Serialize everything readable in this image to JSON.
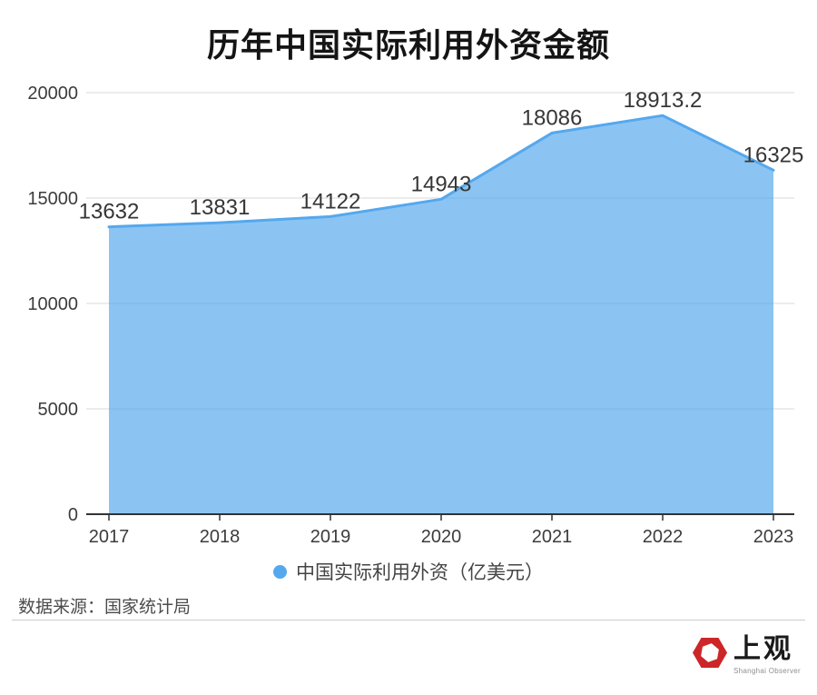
{
  "title": "历年中国实际利用外资金额",
  "chart_data": {
    "type": "area",
    "title": "历年中国实际利用外资金额",
    "categories": [
      "2017",
      "2018",
      "2019",
      "2020",
      "2021",
      "2022",
      "2023"
    ],
    "series": [
      {
        "name": "中国实际利用外资（亿美元）",
        "values": [
          13632,
          13831,
          14122,
          14943,
          18086,
          18913.2,
          16325
        ]
      }
    ],
    "data_labels": [
      "13632",
      "13831",
      "14122",
      "14943",
      "18086",
      "18913.2",
      "16325"
    ],
    "xlabel": "",
    "ylabel": "",
    "ylim": [
      0,
      20000
    ],
    "yticks": [
      0,
      5000,
      10000,
      15000,
      20000
    ],
    "grid": true,
    "legend_position": "bottom"
  },
  "colors": {
    "series_line": "#54a8ee",
    "series_fill": "rgba(84,168,238,0.68)",
    "gridline": "#e0e0e0",
    "axis_line": "#333333",
    "axis_label": "#3c3c3c",
    "data_label": "#363636",
    "logo_red": "#cc2628"
  },
  "legend": {
    "label": "中国实际利用外资（亿美元）"
  },
  "source_text": "数据来源：国家统计局",
  "logo": {
    "name": "上观",
    "subtitle": "Shanghai Observer"
  }
}
